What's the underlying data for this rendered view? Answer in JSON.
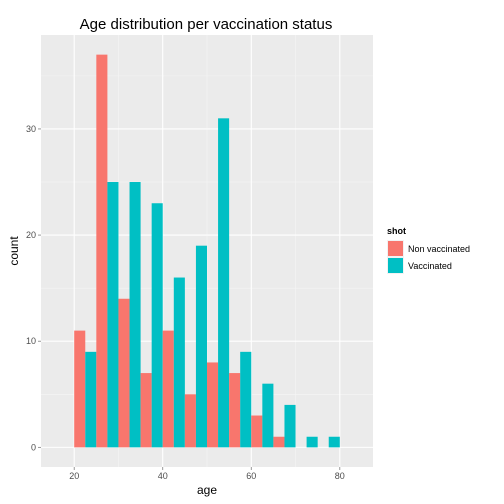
{
  "chart_data": {
    "type": "bar",
    "title": "Age distribution per vaccination status",
    "xlabel": "age",
    "ylabel": "count",
    "x_ticks": [
      20,
      40,
      60,
      80
    ],
    "y_ticks": [
      0,
      10,
      20,
      30
    ],
    "xlim": [
      12.5,
      87.5
    ],
    "ylim": [
      -1.85,
      38.85
    ],
    "bin_width": 5,
    "bin_centers": [
      22.5,
      27.5,
      32.5,
      37.5,
      42.5,
      47.5,
      52.5,
      57.5,
      62.5,
      67.5,
      72.5,
      77.5
    ],
    "series": [
      {
        "name": "Non vaccinated",
        "color": "#F8766D",
        "values": [
          11,
          37,
          14,
          7,
          11,
          5,
          8,
          7,
          3,
          1,
          0,
          0
        ]
      },
      {
        "name": "Vaccinated",
        "color": "#00BFC4",
        "values": [
          9,
          25,
          25,
          23,
          16,
          19,
          31,
          9,
          6,
          4,
          1,
          1
        ]
      }
    ],
    "legend": {
      "title": "shot",
      "position": "right"
    },
    "grid": true,
    "panel_background": "#EBEBEB",
    "grid_major_color": "#FFFFFF",
    "grid_minor_color": "#F5F5F5"
  }
}
